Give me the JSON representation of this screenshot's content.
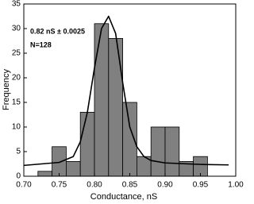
{
  "chart_data": {
    "type": "histogram",
    "x_label": "Conductance, nS",
    "y_label": "Frequency",
    "annotations": [
      "0.82 nS ± 0.0025",
      "N=128"
    ],
    "bins": [
      0.72,
      0.74,
      0.76,
      0.78,
      0.8,
      0.82,
      0.84,
      0.86,
      0.88,
      0.9,
      0.92,
      0.94,
      0.96
    ],
    "values": [
      1,
      6,
      3,
      13,
      31,
      28,
      15,
      4,
      10,
      10,
      3,
      4
    ],
    "color": "#808080",
    "fit": {
      "x": [
        0.7,
        0.75,
        0.77,
        0.78,
        0.79,
        0.8,
        0.81,
        0.82,
        0.83,
        0.84,
        0.85,
        0.86,
        0.87,
        0.88,
        0.9,
        0.95,
        0.99
      ],
      "values": [
        2.2,
        2.8,
        4,
        7,
        13,
        22,
        30,
        32.5,
        29,
        19,
        10,
        6,
        4,
        3.2,
        2.7,
        2.4,
        2.3
      ],
      "color": "#000000"
    },
    "xlim": [
      0.7,
      1.0
    ],
    "xticks": [
      {
        "value": 0.7,
        "label": "0.70"
      },
      {
        "value": 0.75,
        "label": "0.75"
      },
      {
        "value": 0.8,
        "label": "0.80"
      },
      {
        "value": 0.85,
        "label": "0.85"
      },
      {
        "value": 0.9,
        "label": "0.90"
      },
      {
        "value": 0.95,
        "label": "0.95"
      },
      {
        "value": 1.0,
        "label": "1.00"
      }
    ],
    "ylim": [
      0,
      35
    ],
    "yticks": [
      0,
      5,
      10,
      15,
      20,
      25,
      30,
      35
    ]
  }
}
